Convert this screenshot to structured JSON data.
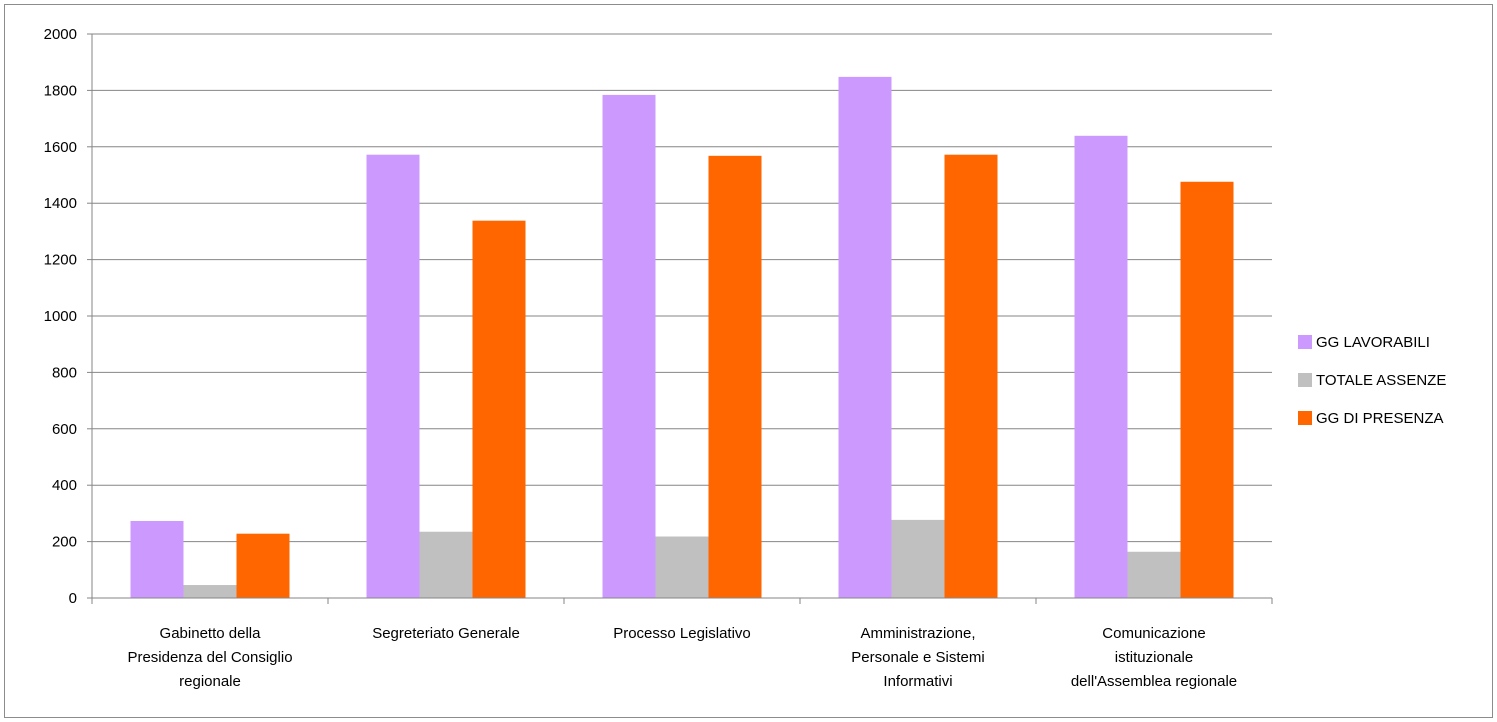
{
  "chart_data": {
    "type": "bar",
    "categories": [
      [
        "Gabinetto della",
        "Presidenza del Consiglio",
        "regionale"
      ],
      [
        "Segreteriato Generale"
      ],
      [
        "Processo Legislativo"
      ],
      [
        "Amministrazione,",
        "Personale e Sistemi",
        "Informativi"
      ],
      [
        "Comunicazione",
        "istituzionale",
        "dell'Assemblea regionale"
      ]
    ],
    "series": [
      {
        "name": "GG LAVORABILI",
        "color": "#cc99ff",
        "values": [
          273,
          1572,
          1784,
          1848,
          1639
        ]
      },
      {
        "name": "TOTALE ASSENZE",
        "color": "#c0c0c0",
        "values": [
          46,
          235,
          218,
          277,
          164
        ]
      },
      {
        "name": "GG DI PRESENZA",
        "color": "#ff6600",
        "values": [
          228,
          1338,
          1568,
          1572,
          1476
        ]
      }
    ],
    "ylim": [
      0,
      2000
    ],
    "yticks": [
      "0",
      "200",
      "400",
      "600",
      "800",
      "1000",
      "1200",
      "1400",
      "1600",
      "1800",
      "2000"
    ],
    "grid": true,
    "legend_position": "right",
    "title": "",
    "xlabel": "",
    "ylabel": ""
  }
}
